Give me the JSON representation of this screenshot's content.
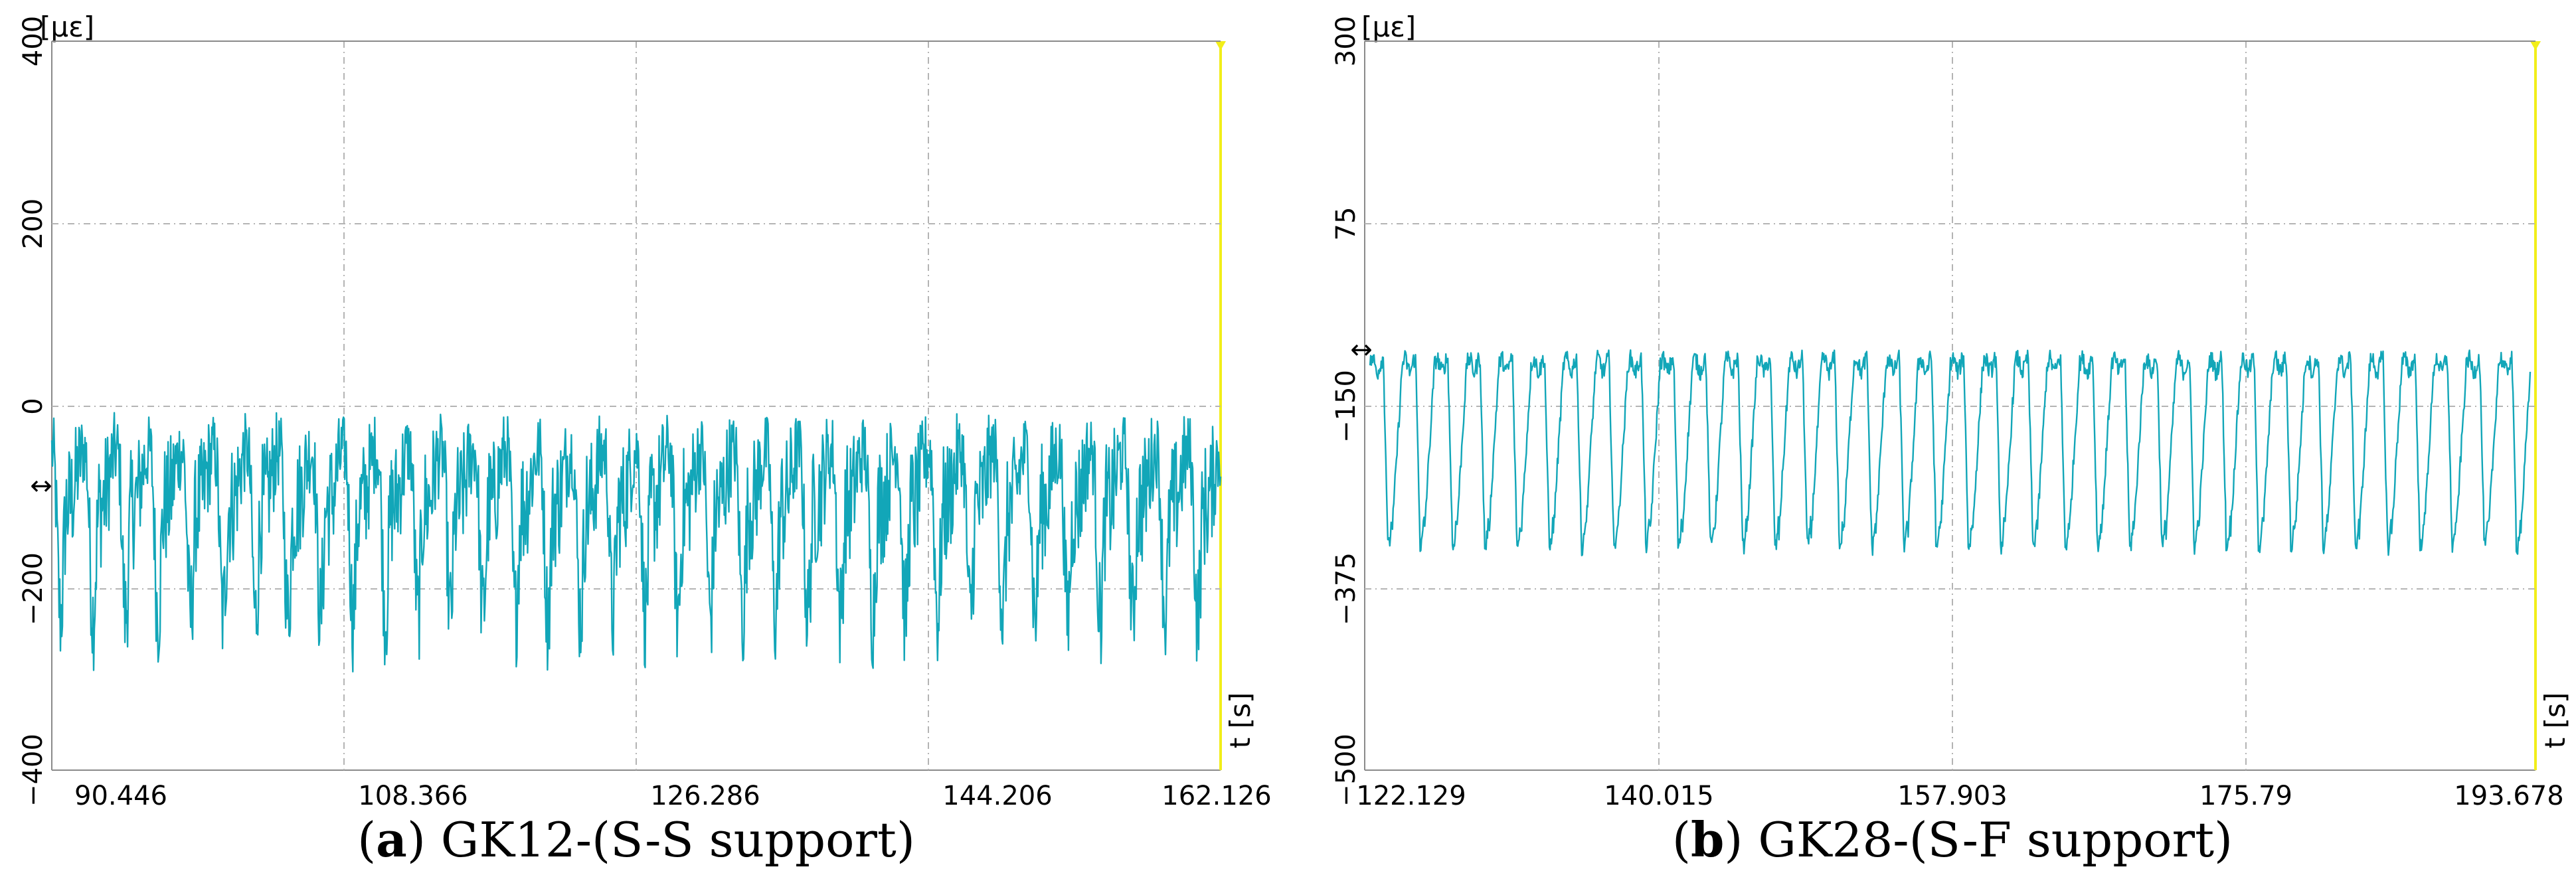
{
  "chart_data": [
    {
      "type": "line",
      "panel_label": "a",
      "caption": "GK12-(S-S support)",
      "y_unit": "[με]",
      "x_unit": "t [s]",
      "y_ticks": [
        "400",
        "200",
        "0",
        "−200",
        "−400"
      ],
      "x_ticks": [
        "90.446",
        "108.366",
        "126.286",
        "144.206",
        "162.126"
      ],
      "xlim": [
        85.0,
        170.0
      ],
      "ylim": [
        -400,
        400
      ],
      "grid": true,
      "series": [
        {
          "color": "#12a6b8",
          "cycle_period_s": 2.0,
          "baseline": -80,
          "peak_max": 10,
          "trough_min": -370,
          "description_values": "periodic strain oscillation"
        }
      ]
    },
    {
      "type": "line",
      "panel_label": "b",
      "caption": "GK28-(S-F support)",
      "y_unit": "[με]",
      "x_unit": "t [s]",
      "y_ticks": [
        "300",
        "75",
        "−150",
        "−375",
        "−500"
      ],
      "x_ticks": [
        "122.129",
        "140.015",
        "157.903",
        "175.79",
        "193.678"
      ],
      "xlim": [
        121.0,
        194.0
      ],
      "ylim": [
        -600,
        300
      ],
      "grid": true,
      "series": [
        {
          "color": "#12a6b8",
          "cycle_period_s": 2.0,
          "high": -100,
          "low": -310
        }
      ]
    }
  ]
}
